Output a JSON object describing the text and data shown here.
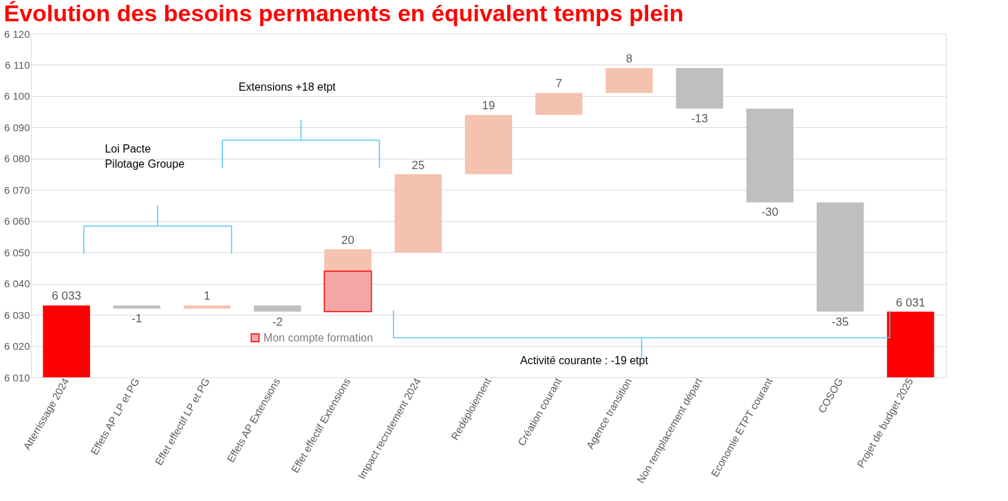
{
  "chart_data": {
    "type": "bar",
    "title": "Évolution des besoins permanents en équivalent temps plein",
    "categories": [
      "Atterrissage 2024",
      "Effets AP LP et PG",
      "Effet effectif LP et PG",
      "Effets AP Extensions",
      "Effet effectif Extensions",
      "Impact recrutement 2024",
      "Redéploiement",
      "Création courant",
      "Agence transition",
      "Non remplacement départ",
      "Economie ETPT courant",
      "COSOG",
      "Projet de budget 2025"
    ],
    "series": [
      {
        "colors": [
          "#ff0000",
          "#bfbfbf",
          "#f4c2ae",
          "#bfbfbf",
          "#f4c2ae",
          "#f4c2ae",
          "#f4c2ae",
          "#f4c2ae",
          "#f4c2ae",
          "#bfbfbf",
          "#bfbfbf",
          "#bfbfbf",
          "#ff0000"
        ],
        "values": [
          6033,
          -1,
          1,
          -2,
          20,
          25,
          19,
          7,
          8,
          -13,
          -30,
          -35,
          6031
        ],
        "base": [
          null,
          6033,
          6032,
          6033,
          6031,
          6050,
          6075,
          6094,
          6101,
          6109,
          6096,
          6066,
          null
        ],
        "value_labels": [
          "6 033",
          "-1",
          "1",
          "-2",
          "20",
          "25",
          "19",
          "7",
          "8",
          "-13",
          "-30",
          "-35",
          "6 031"
        ]
      },
      {
        "name": "Mon compte formation",
        "color": "#f4a6a6",
        "values": [
          null,
          null,
          null,
          null,
          13,
          null,
          null,
          null,
          null,
          null,
          null,
          null,
          null
        ],
        "base": [
          null,
          null,
          null,
          null,
          6031,
          null,
          null,
          null,
          null,
          null,
          null,
          null,
          null
        ]
      }
    ],
    "ylim": [
      6010,
      6120
    ],
    "yticks": [
      {
        "value": 6010,
        "label": "6 010"
      },
      {
        "value": 6020,
        "label": "6 020"
      },
      {
        "value": 6030,
        "label": "6 030"
      },
      {
        "value": 6040,
        "label": "6 040"
      },
      {
        "value": 6050,
        "label": "6 050"
      },
      {
        "value": 6060,
        "label": "6 060"
      },
      {
        "value": 6070,
        "label": "6 070"
      },
      {
        "value": 6080,
        "label": "6 080"
      },
      {
        "value": 6090,
        "label": "6 090"
      },
      {
        "value": 6100,
        "label": "6 100"
      },
      {
        "value": 6110,
        "label": "6 110"
      },
      {
        "value": 6120,
        "label": "6 120"
      }
    ],
    "grid": "y",
    "legend": "bottom left",
    "annotations": [
      "Loi Pacte\nPilotage Groupe",
      "Extensions +18 etpt",
      "Activité courante : -19 etpt"
    ]
  }
}
